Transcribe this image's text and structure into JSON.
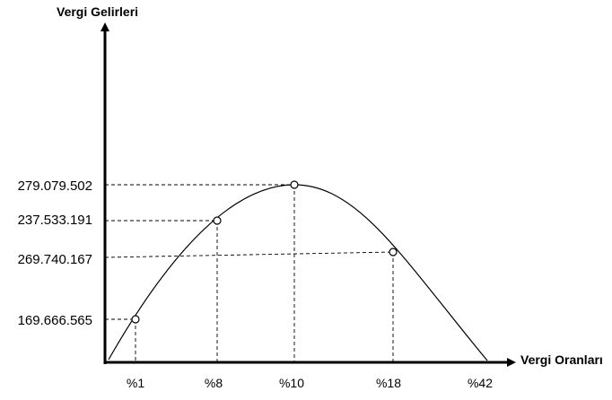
{
  "chart_data": {
    "type": "line",
    "ylabel": "Vergi Gelirleri",
    "xlabel": "Vergi Oranları",
    "x_ticks": [
      "%1",
      "%8",
      "%10",
      "%18",
      "%42"
    ],
    "points": [
      {
        "x": "%1",
        "label": "169.666.565"
      },
      {
        "x": "%8",
        "label": "237.533.191"
      },
      {
        "x": "%10",
        "label": "279.079.502"
      },
      {
        "x": "%18",
        "label": "269.740.167"
      }
    ],
    "grid": false,
    "legend": "none"
  }
}
